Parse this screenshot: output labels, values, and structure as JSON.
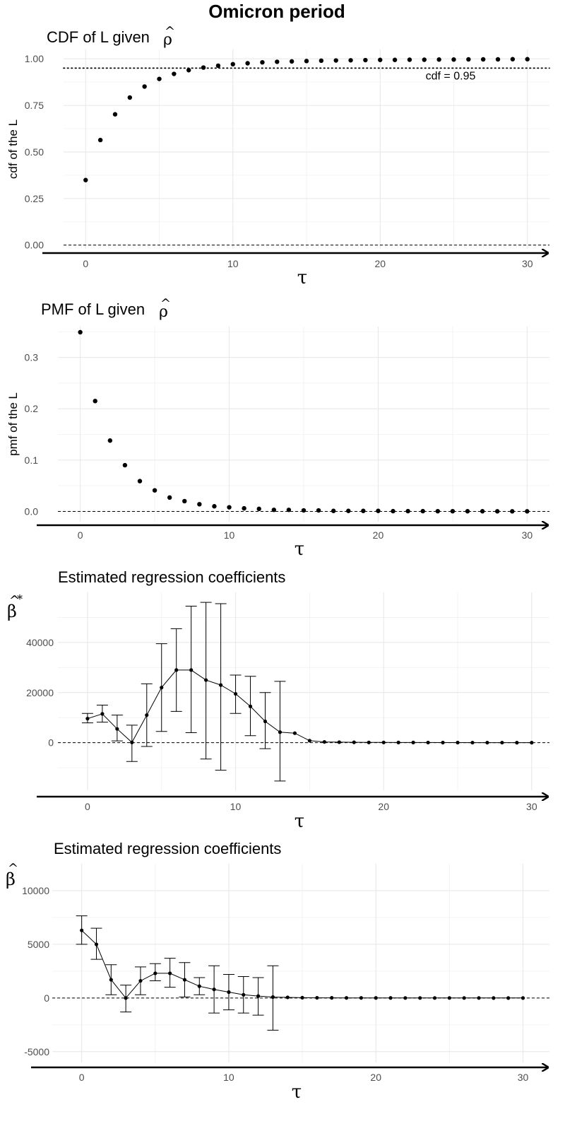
{
  "figure": {
    "title": "Omicron period"
  },
  "chart_data": [
    {
      "type": "scatter",
      "title": "CDF of L given",
      "title_symbol": "ρ",
      "title_accent": "^",
      "xlabel": "τ",
      "ylabel": "cdf of the L",
      "xlim": [
        -1.5,
        31.5
      ],
      "ylim": [
        -0.02,
        1.05
      ],
      "xticks": [
        0,
        10,
        20,
        30
      ],
      "yticks": [
        0.0,
        0.25,
        0.5,
        0.75,
        1.0
      ],
      "ytick_labels": [
        "0.00",
        "0.25",
        "0.50",
        "0.75",
        "1.00"
      ],
      "grid": true,
      "x": [
        0,
        1,
        2,
        3,
        4,
        5,
        6,
        7,
        8,
        9,
        10,
        11,
        12,
        13,
        14,
        15,
        16,
        17,
        18,
        19,
        20,
        21,
        22,
        23,
        24,
        25,
        26,
        27,
        28,
        29,
        30
      ],
      "values": [
        0.349,
        0.564,
        0.702,
        0.792,
        0.851,
        0.892,
        0.919,
        0.939,
        0.953,
        0.963,
        0.971,
        0.976,
        0.981,
        0.984,
        0.986,
        0.988,
        0.99,
        0.991,
        0.992,
        0.993,
        0.994,
        0.994,
        0.995,
        0.995,
        0.996,
        0.996,
        0.997,
        0.997,
        0.997,
        0.998,
        0.998
      ],
      "error_bars": null,
      "connect_points": false,
      "hline_dashed": 0,
      "hline_dotted": 0.95,
      "annotation": "cdf = 0.95"
    },
    {
      "type": "scatter",
      "title": "PMF of L given",
      "title_symbol": "ρ",
      "title_accent": "^",
      "xlabel": "τ",
      "ylabel": "pmf of the L",
      "xlim": [
        -1.5,
        31.5
      ],
      "ylim": [
        -0.02,
        0.36
      ],
      "xticks": [
        0,
        10,
        20,
        30
      ],
      "yticks": [
        0.0,
        0.1,
        0.2,
        0.3
      ],
      "ytick_labels": [
        "0.0",
        "0.1",
        "0.2",
        "0.3"
      ],
      "grid": true,
      "x": [
        0,
        1,
        2,
        3,
        4,
        5,
        6,
        7,
        8,
        9,
        10,
        11,
        12,
        13,
        14,
        15,
        16,
        17,
        18,
        19,
        20,
        21,
        22,
        23,
        24,
        25,
        26,
        27,
        28,
        29,
        30
      ],
      "values": [
        0.349,
        0.215,
        0.138,
        0.09,
        0.059,
        0.041,
        0.027,
        0.02,
        0.014,
        0.01,
        0.008,
        0.006,
        0.005,
        0.003,
        0.003,
        0.002,
        0.002,
        0.001,
        0.001,
        0.001,
        0.001,
        0.0005,
        0.0005,
        0.0005,
        0.0004,
        0.0004,
        0.0003,
        0.0003,
        0.0002,
        0.0002,
        0.0002
      ],
      "error_bars": null,
      "connect_points": false,
      "hline_dashed": 0,
      "hline_dotted": null,
      "annotation": null
    },
    {
      "type": "line",
      "title": "Estimated regression coefficients",
      "title_symbol": null,
      "xlabel": "τ",
      "ylabel_symbol": "β",
      "ylabel_accent": "^",
      "ylabel_superscript": "*",
      "xlim": [
        -2,
        31.2
      ],
      "ylim": [
        -19000,
        60000
      ],
      "xticks": [
        0,
        10,
        20,
        30
      ],
      "yticks": [
        0,
        20000,
        40000
      ],
      "ytick_labels": [
        "0",
        "20000",
        "40000"
      ],
      "grid": true,
      "x": [
        0,
        1,
        2,
        3,
        4,
        5,
        6,
        7,
        8,
        9,
        10,
        11,
        12,
        13,
        14,
        15,
        16,
        17,
        18,
        19,
        20,
        21,
        22,
        23,
        24,
        25,
        26,
        27,
        28,
        29,
        30
      ],
      "values": [
        9600,
        11500,
        5500,
        100,
        11000,
        22000,
        29000,
        29000,
        25000,
        23000,
        19500,
        14500,
        8500,
        4200,
        3800,
        800,
        300,
        200,
        150,
        100,
        100,
        80,
        70,
        60,
        50,
        40,
        30,
        20,
        20,
        10,
        10
      ],
      "error_bars": [
        [
          7900,
          11700
        ],
        [
          8200,
          15000
        ],
        [
          700,
          11000
        ],
        [
          -7500,
          7000
        ],
        [
          -1500,
          23500
        ],
        [
          4500,
          39500
        ],
        [
          12500,
          45500
        ],
        [
          4000,
          54500
        ],
        [
          -6500,
          56000
        ],
        [
          -11000,
          55500
        ],
        [
          11700,
          27000
        ],
        [
          2800,
          26500
        ],
        [
          -2400,
          20000
        ],
        [
          -15300,
          24500
        ],
        null,
        null,
        null,
        null,
        null,
        null,
        null,
        null,
        null,
        null,
        null,
        null,
        null,
        null,
        null,
        null,
        null
      ],
      "connect_points": true,
      "hline_dashed": 0,
      "hline_dotted": null,
      "annotation": null
    },
    {
      "type": "line",
      "title": "Estimated regression coefficients",
      "title_symbol": null,
      "xlabel": "τ",
      "ylabel_symbol": "β",
      "ylabel_accent": "^",
      "ylabel_superscript": null,
      "xlim": [
        -2,
        31.8
      ],
      "ylim": [
        -6000,
        12500
      ],
      "xticks": [
        0,
        10,
        20,
        30
      ],
      "yticks": [
        -5000,
        0,
        5000,
        10000
      ],
      "ytick_labels": [
        "-5000",
        "0",
        "5000",
        "10000"
      ],
      "grid": true,
      "x": [
        0,
        1,
        2,
        3,
        4,
        5,
        6,
        7,
        8,
        9,
        10,
        11,
        12,
        13,
        14,
        15,
        16,
        17,
        18,
        19,
        20,
        21,
        22,
        23,
        24,
        25,
        26,
        27,
        28,
        29,
        30
      ],
      "values": [
        6300,
        5000,
        1700,
        0,
        1600,
        2300,
        2300,
        1700,
        1100,
        800,
        550,
        300,
        180,
        90,
        60,
        30,
        20,
        15,
        10,
        10,
        8,
        6,
        5,
        4,
        3,
        3,
        2,
        2,
        1,
        1,
        1
      ],
      "error_bars": [
        [
          5000,
          7650
        ],
        [
          3600,
          6500
        ],
        [
          300,
          3100
        ],
        [
          -1300,
          1200
        ],
        [
          300,
          2900
        ],
        [
          1600,
          3200
        ],
        [
          1000,
          3700
        ],
        [
          100,
          3300
        ],
        [
          300,
          1900
        ],
        [
          -1400,
          3000
        ],
        [
          -1100,
          2200
        ],
        [
          -1400,
          2000
        ],
        [
          -1600,
          1900
        ],
        [
          -3000,
          3000
        ],
        null,
        null,
        null,
        null,
        null,
        null,
        null,
        null,
        null,
        null,
        null,
        null,
        null,
        null,
        null,
        null,
        null
      ],
      "connect_points": true,
      "hline_dashed": 0,
      "hline_dotted": null,
      "annotation": null
    }
  ]
}
